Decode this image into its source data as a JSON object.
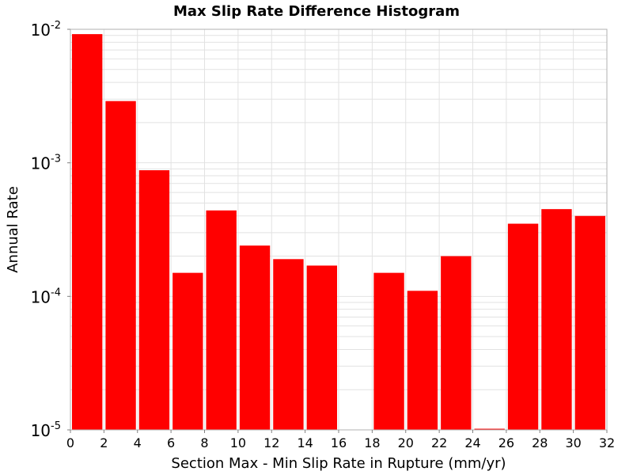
{
  "chart_data": {
    "type": "bar",
    "title": "Max Slip Rate Difference Histogram",
    "xlabel": "Section Max - Min Slip Rate in Rupture (mm/yr)",
    "ylabel": "Annual Rate",
    "xlim": [
      0,
      32
    ],
    "ylim": [
      1e-05,
      0.01
    ],
    "yscale": "log",
    "grid": true,
    "legend": "none",
    "bar_color": "#ff0000",
    "bin_width": 2,
    "x_ticks": [
      0,
      2,
      4,
      6,
      8,
      10,
      12,
      14,
      16,
      18,
      20,
      22,
      24,
      26,
      28,
      30,
      32
    ],
    "y_ticks": [
      {
        "base": "10",
        "exp": "-2",
        "value": 0.01
      },
      {
        "base": "10",
        "exp": "-3",
        "value": 0.001
      },
      {
        "base": "10",
        "exp": "-4",
        "value": 0.0001
      },
      {
        "base": "10",
        "exp": "-5",
        "value": 1e-05
      }
    ],
    "bins": [
      {
        "x": 1,
        "value": 0.0092
      },
      {
        "x": 3,
        "value": 0.0029
      },
      {
        "x": 5,
        "value": 0.00088
      },
      {
        "x": 7,
        "value": 0.00015
      },
      {
        "x": 9,
        "value": 0.00044
      },
      {
        "x": 11,
        "value": 0.00024
      },
      {
        "x": 13,
        "value": 0.00019
      },
      {
        "x": 15,
        "value": 0.00017
      },
      {
        "x": 17,
        "value": 0.0
      },
      {
        "x": 19,
        "value": 0.00015
      },
      {
        "x": 21,
        "value": 0.00011
      },
      {
        "x": 23,
        "value": 0.0002
      },
      {
        "x": 25,
        "value": 1.02e-05
      },
      {
        "x": 27,
        "value": 0.00035
      },
      {
        "x": 29,
        "value": 0.00045
      },
      {
        "x": 31,
        "value": 0.0004
      }
    ]
  }
}
